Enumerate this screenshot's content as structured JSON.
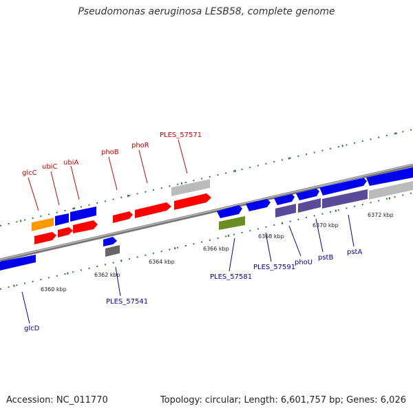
{
  "title": "Pseudomonas aeruginosa LESB58, complete genome",
  "footer": {
    "accession": "Accession: NC_011770",
    "summary": "Topology: circular; Length: 6,601,757 bp; Genes: 6,026"
  },
  "colors": {
    "forward_label": "#cc0000",
    "reverse_label": "#000099",
    "forward_ruler": "#006600",
    "backbone": "#888888",
    "red_gene": "#ff0000",
    "blue_gene": "#0000ee",
    "orange_gene": "#ff9900",
    "purple_gene": "#5a4a9a",
    "green_gene": "#6b8e23",
    "gray_gene": "#bbbbbb",
    "dark_gray_gene": "#666666"
  },
  "axis_labels": [
    "6360 kbp",
    "6362 kbp",
    "6364 kbp",
    "6366 kbp",
    "6368 kbp",
    "6370 kbp",
    "6372 kbp"
  ],
  "forward_labels": [
    "glcC",
    "ubiC",
    "ubiA",
    "phoB",
    "phoR",
    "PLES_57571"
  ],
  "reverse_labels": [
    "glcD",
    "PLES_57541",
    "PLES_57581",
    "PLES_57591",
    "phoU",
    "pstB",
    "pstA"
  ]
}
